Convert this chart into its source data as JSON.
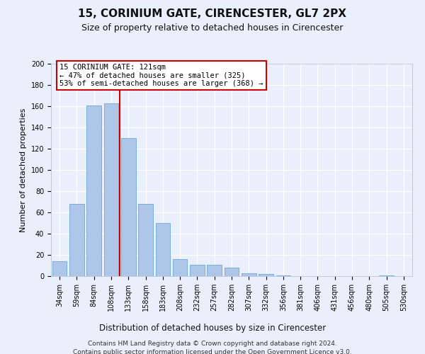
{
  "title1": "15, CORINIUM GATE, CIRENCESTER, GL7 2PX",
  "title2": "Size of property relative to detached houses in Cirencester",
  "xlabel": "Distribution of detached houses by size in Cirencester",
  "ylabel": "Number of detached properties",
  "categories": [
    "34sqm",
    "59sqm",
    "84sqm",
    "108sqm",
    "133sqm",
    "158sqm",
    "183sqm",
    "208sqm",
    "232sqm",
    "257sqm",
    "282sqm",
    "307sqm",
    "332sqm",
    "356sqm",
    "381sqm",
    "406sqm",
    "431sqm",
    "456sqm",
    "480sqm",
    "505sqm",
    "530sqm"
  ],
  "values": [
    14,
    68,
    161,
    163,
    130,
    68,
    50,
    16,
    11,
    11,
    8,
    3,
    2,
    1,
    0,
    0,
    0,
    0,
    0,
    1,
    0
  ],
  "bar_color": "#aec6e8",
  "bar_edge_color": "#5b9bd5",
  "vline_color": "#cc0000",
  "vline_position": 3.5,
  "annotation_line1": "15 CORINIUM GATE: 121sqm",
  "annotation_line2": "← 47% of detached houses are smaller (325)",
  "annotation_line3": "53% of semi-detached houses are larger (368) →",
  "annotation_box_edge": "#cc0000",
  "ylim": [
    0,
    200
  ],
  "yticks": [
    0,
    20,
    40,
    60,
    80,
    100,
    120,
    140,
    160,
    180,
    200
  ],
  "footer1": "Contains HM Land Registry data © Crown copyright and database right 2024.",
  "footer2": "Contains public sector information licensed under the Open Government Licence v3.0.",
  "bg_color": "#eaf0fb",
  "plot_bg_color": "#eaf0fb",
  "grid_color": "#ffffff",
  "title1_fontsize": 11,
  "title2_fontsize": 9,
  "xlabel_fontsize": 8.5,
  "ylabel_fontsize": 8,
  "tick_fontsize": 7,
  "footer_fontsize": 6.5,
  "annot_fontsize": 7.5
}
